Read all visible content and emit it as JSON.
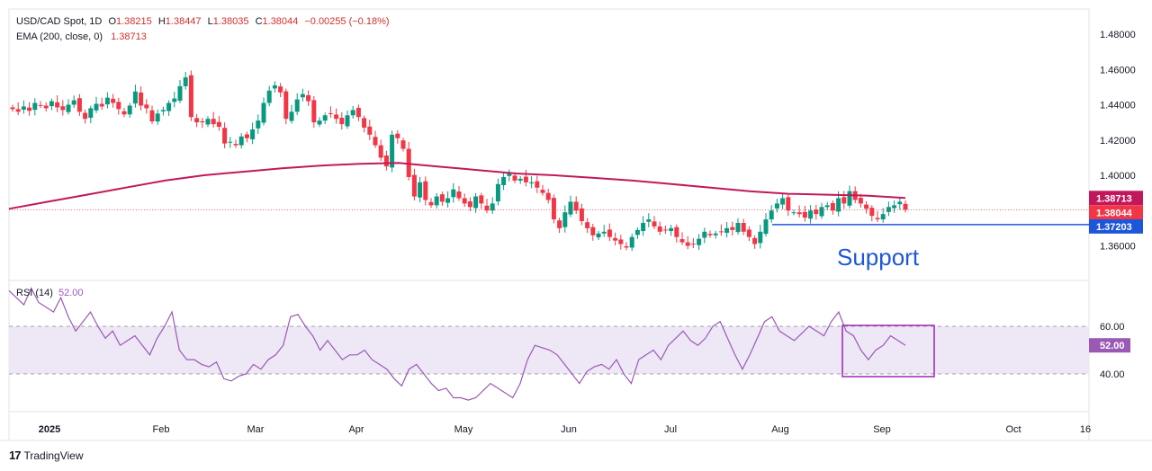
{
  "header": {
    "symbol": "USD/CAD Spot, 1D",
    "o_label": "O",
    "o_value": "1.38215",
    "h_label": "H",
    "h_value": "1.38447",
    "l_label": "L",
    "l_value": "1.38035",
    "c_label": "C",
    "c_value": "1.38044",
    "change": "−0.00255 (−0.18%)",
    "ema_label": "EMA (200, close, 0)",
    "ema_value": "1.38713"
  },
  "rsi_legend": {
    "label": "RSI (14)",
    "value": "52.00"
  },
  "brand": {
    "name": "TradingView"
  },
  "colors": {
    "up": "#089981",
    "down": "#f23645",
    "ema": "#c2185b",
    "support": "#1e56d9",
    "rsi": "#9b59b6",
    "rsi_band": "#ede7f6"
  },
  "chart_data": [
    {
      "type": "candlestick",
      "price_axis_ticks": [
        "1.48000",
        "1.46000",
        "1.44000",
        "1.42000",
        "1.40000",
        "1.36000"
      ],
      "ylim": [
        1.35,
        1.485
      ],
      "time_axis_labels": [
        "2025",
        "Feb",
        "Mar",
        "Apr",
        "May",
        "Jun",
        "Jul",
        "Aug",
        "Sep",
        "Oct",
        "16"
      ],
      "price_badges": [
        {
          "label": "1.38713",
          "color": "#c2185b"
        },
        {
          "label": "1.38044",
          "color": "#f23645"
        },
        {
          "label": "1.37203",
          "color": "#1e56d9"
        }
      ],
      "support_level": 1.37203,
      "support_label": "Support",
      "last_close": 1.38044,
      "ema200_value": 1.38713,
      "close_series": [
        1.4375,
        1.436,
        1.439,
        1.4365,
        1.441,
        1.4395,
        1.438,
        1.442,
        1.4385,
        1.437,
        1.44,
        1.4425,
        1.436,
        1.432,
        1.438,
        1.4405,
        1.439,
        1.444,
        1.441,
        1.4375,
        1.4345,
        1.4395,
        1.4475,
        1.4395,
        1.438,
        1.4305,
        1.435,
        1.437,
        1.441,
        1.4435,
        1.4505,
        1.4555,
        1.433,
        1.43,
        1.43,
        1.432,
        1.429,
        1.4275,
        1.418,
        1.419,
        1.417,
        1.422,
        1.421,
        1.426,
        1.431,
        1.441,
        1.448,
        1.451,
        1.447,
        1.432,
        1.436,
        1.443,
        1.446,
        1.442,
        1.43,
        1.431,
        1.434,
        1.435,
        1.432,
        1.429,
        1.434,
        1.437,
        1.433,
        1.427,
        1.423,
        1.417,
        1.41,
        1.405,
        1.423,
        1.421,
        1.415,
        1.399,
        1.388,
        1.396,
        1.386,
        1.383,
        1.388,
        1.385,
        1.387,
        1.392,
        1.387,
        1.384,
        1.382,
        1.388,
        1.384,
        1.38,
        1.384,
        1.395,
        1.399,
        1.401,
        1.397,
        1.398,
        1.396,
        1.396,
        1.393,
        1.39,
        1.386,
        1.375,
        1.37,
        1.379,
        1.385,
        1.38,
        1.374,
        1.37,
        1.366,
        1.367,
        1.368,
        1.365,
        1.363,
        1.361,
        1.359,
        1.365,
        1.369,
        1.373,
        1.375,
        1.371,
        1.368,
        1.369,
        1.37,
        1.365,
        1.362,
        1.36,
        1.361,
        1.364,
        1.368,
        1.366,
        1.367,
        1.368,
        1.37,
        1.369,
        1.373,
        1.368,
        1.365,
        1.361,
        1.368,
        1.375,
        1.38,
        1.384,
        1.387,
        1.38,
        1.379,
        1.378,
        1.376,
        1.38,
        1.378,
        1.382,
        1.383,
        1.38,
        1.387,
        1.384,
        1.391,
        1.386,
        1.384,
        1.381,
        1.377,
        1.375,
        1.378,
        1.382,
        1.383,
        1.385,
        1.38044
      ],
      "ema_series": [
        1.381,
        1.385,
        1.389,
        1.393,
        1.397,
        1.4,
        1.402,
        1.404,
        1.4055,
        1.4065,
        1.407,
        1.405,
        1.403,
        1.401,
        1.4,
        1.3985,
        1.397,
        1.395,
        1.393,
        1.391,
        1.3895,
        1.389,
        1.3885,
        1.38713
      ]
    },
    {
      "type": "line",
      "name": "RSI (14)",
      "levels": [
        "60.00",
        "40.00"
      ],
      "band": [
        40,
        60
      ],
      "current_value": 52.0,
      "values": [
        75,
        72,
        69,
        76,
        70,
        68,
        66,
        72,
        64,
        58,
        62,
        66,
        60,
        55,
        58,
        52,
        54,
        56,
        52,
        48,
        55,
        60,
        66,
        50,
        46,
        46,
        44,
        43,
        45,
        38,
        37,
        39,
        40,
        44,
        42,
        46,
        48,
        52,
        64,
        65,
        60,
        56,
        50,
        54,
        50,
        46,
        48,
        48,
        50,
        46,
        44,
        42,
        38,
        35,
        42,
        44,
        40,
        36,
        33,
        34,
        30,
        30,
        29,
        30,
        33,
        36,
        34,
        32,
        30,
        36,
        46,
        52,
        51,
        50,
        48,
        44,
        40,
        36,
        41,
        43,
        44,
        42,
        46,
        40,
        36,
        46,
        48,
        50,
        46,
        52,
        55,
        58,
        54,
        52,
        55,
        60,
        62,
        55,
        48,
        42,
        48,
        55,
        62,
        64,
        58,
        56,
        54,
        57,
        60,
        58,
        56,
        62,
        66,
        58,
        56,
        50,
        46,
        50,
        52,
        56,
        54,
        52
      ]
    }
  ]
}
